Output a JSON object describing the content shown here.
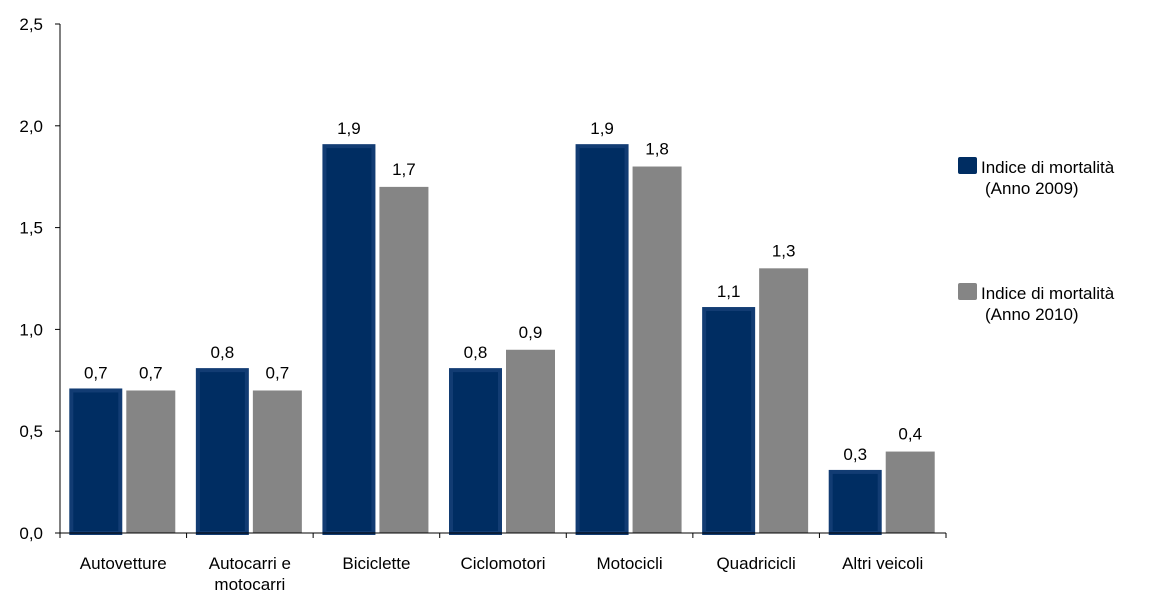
{
  "chart_data": {
    "type": "bar",
    "categories": [
      [
        "Autovetture"
      ],
      [
        "Autocarri e",
        "motocarri"
      ],
      [
        "Biciclette"
      ],
      [
        "Ciclomotori"
      ],
      [
        "Motocicli"
      ],
      [
        "Quadricicli"
      ],
      [
        "Altri veicoli"
      ]
    ],
    "series": [
      {
        "name_lines": [
          "Indice di mortalità",
          "(Anno 2009)"
        ],
        "color": "#002D62",
        "border_color": "#123C73",
        "values": [
          0.7,
          0.8,
          1.9,
          0.8,
          1.9,
          1.1,
          0.3
        ],
        "labels": [
          "0,7",
          "0,8",
          "1,9",
          "0,8",
          "1,9",
          "1,1",
          "0,3"
        ]
      },
      {
        "name_lines": [
          "Indice di mortalità",
          "(Anno 2010)"
        ],
        "color": "#858585",
        "border_color": "#858585",
        "values": [
          0.7,
          0.7,
          1.7,
          0.9,
          1.8,
          1.3,
          0.4
        ],
        "labels": [
          "0,7",
          "0,7",
          "1,7",
          "0,9",
          "1,8",
          "1,3",
          "0,4"
        ]
      }
    ],
    "y_ticks": [
      0,
      0.5,
      1.0,
      1.5,
      2.0,
      2.5
    ],
    "y_tick_labels": [
      "0,0",
      "0,5",
      "1,0",
      "1,5",
      "2,0",
      "2,5"
    ],
    "ylim": [
      0,
      2.5
    ],
    "grid": false,
    "legend_position": "right"
  }
}
